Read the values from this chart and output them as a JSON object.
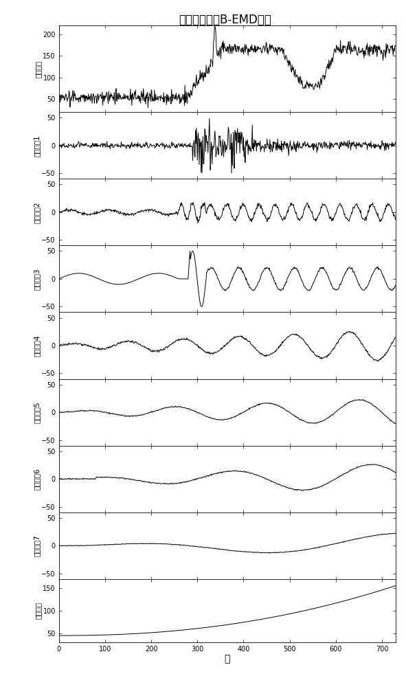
{
  "title": "油色谱信号的B-EMD分解",
  "xlabel": "天",
  "xlim": [
    0,
    730
  ],
  "xticks": [
    0,
    100,
    200,
    300,
    400,
    500,
    600,
    700
  ],
  "subplots": [
    {
      "ylabel": "原始信号",
      "ylim": [
        20,
        220
      ],
      "yticks": [
        50,
        100,
        150,
        200
      ]
    },
    {
      "ylabel": "固有模态1",
      "ylim": [
        -60,
        60
      ],
      "yticks": [
        -50,
        0,
        50
      ]
    },
    {
      "ylabel": "固有模态2",
      "ylim": [
        -60,
        60
      ],
      "yticks": [
        -50,
        0,
        50
      ]
    },
    {
      "ylabel": "固有模态3",
      "ylim": [
        -60,
        60
      ],
      "yticks": [
        -50,
        0,
        50
      ]
    },
    {
      "ylabel": "固有模态4",
      "ylim": [
        -60,
        60
      ],
      "yticks": [
        -50,
        0,
        50
      ]
    },
    {
      "ylabel": "固有模态5",
      "ylim": [
        -60,
        60
      ],
      "yticks": [
        -50,
        0,
        50
      ]
    },
    {
      "ylabel": "固有模态6",
      "ylim": [
        -60,
        60
      ],
      "yticks": [
        -50,
        0,
        50
      ]
    },
    {
      "ylabel": "固有模态7",
      "ylim": [
        -60,
        60
      ],
      "yticks": [
        -50,
        0,
        50
      ]
    },
    {
      "ylabel": "信号残差",
      "ylim": [
        30,
        170
      ],
      "yticks": [
        50,
        100,
        150
      ]
    }
  ],
  "line_color": "#000000",
  "line_width": 0.7,
  "background_color": "#ffffff",
  "title_fontsize": 12,
  "ylabel_fontsize": 7.5,
  "tick_fontsize": 7
}
